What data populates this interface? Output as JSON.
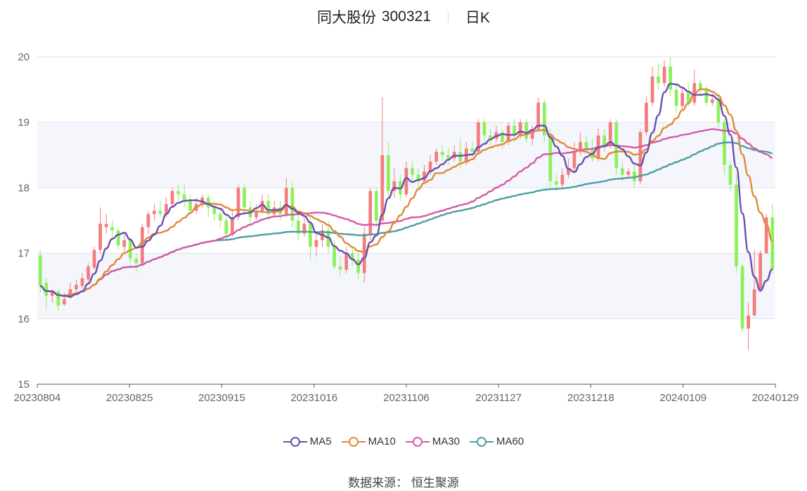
{
  "header": {
    "name": "同大股份",
    "code": "300321",
    "period": "日K"
  },
  "source": "数据来源： 恒生聚源",
  "colors": {
    "up": "#f47c7c",
    "down": "#8cf05c",
    "MA5": "#6a4fb0",
    "MA10": "#e08a3a",
    "MA30": "#d45aa8",
    "MA60": "#4c9ea0"
  },
  "chart_data": {
    "type": "candlestick",
    "title": "同大股份 300321 日K",
    "y_ticks": [
      "15",
      "16",
      "17",
      "18",
      "19",
      "20"
    ],
    "ylim": [
      15,
      20
    ],
    "x_ticks": [
      "20230804",
      "20230825",
      "20230915",
      "20231016",
      "20231106",
      "20231127",
      "20231218",
      "20240109",
      "20240129"
    ],
    "legend": [
      "MA5",
      "MA10",
      "MA30",
      "MA60"
    ],
    "candles": [
      [
        16.97,
        16.5,
        17.05,
        16.4
      ],
      [
        16.55,
        16.35,
        16.62,
        16.15
      ],
      [
        16.35,
        16.4,
        16.45,
        16.25
      ],
      [
        16.42,
        16.2,
        16.45,
        16.12
      ],
      [
        16.22,
        16.3,
        16.4,
        16.2
      ],
      [
        16.32,
        16.45,
        16.55,
        16.3
      ],
      [
        16.45,
        16.52,
        16.6,
        16.38
      ],
      [
        16.5,
        16.62,
        16.7,
        16.45
      ],
      [
        16.6,
        16.8,
        16.85,
        16.55
      ],
      [
        16.78,
        17.05,
        17.1,
        16.75
      ],
      [
        17.05,
        17.45,
        17.7,
        17.0
      ],
      [
        17.4,
        17.45,
        17.6,
        17.3
      ],
      [
        17.4,
        17.35,
        17.5,
        17.2
      ],
      [
        17.35,
        17.12,
        17.4,
        17.05
      ],
      [
        17.1,
        17.2,
        17.3,
        17.0
      ],
      [
        17.2,
        16.92,
        17.25,
        16.8
      ],
      [
        16.92,
        16.85,
        17.0,
        16.7
      ],
      [
        16.85,
        17.4,
        17.45,
        16.8
      ],
      [
        17.4,
        17.6,
        17.65,
        17.3
      ],
      [
        17.6,
        17.65,
        17.75,
        17.5
      ],
      [
        17.65,
        17.6,
        17.8,
        17.55
      ],
      [
        17.6,
        17.75,
        17.85,
        17.55
      ],
      [
        17.75,
        17.95,
        18.0,
        17.7
      ],
      [
        17.95,
        17.9,
        18.05,
        17.8
      ],
      [
        17.9,
        17.8,
        18.05,
        17.7
      ],
      [
        17.8,
        17.65,
        17.9,
        17.6
      ],
      [
        17.65,
        17.75,
        17.85,
        17.6
      ],
      [
        17.75,
        17.85,
        17.9,
        17.7
      ],
      [
        17.85,
        17.7,
        17.9,
        17.55
      ],
      [
        17.7,
        17.6,
        17.8,
        17.5
      ],
      [
        17.6,
        17.5,
        17.7,
        17.4
      ],
      [
        17.5,
        17.3,
        17.6,
        17.2
      ],
      [
        17.3,
        17.55,
        17.65,
        17.25
      ],
      [
        17.55,
        18.0,
        18.05,
        17.5
      ],
      [
        18.0,
        17.7,
        18.05,
        17.6
      ],
      [
        17.7,
        17.55,
        17.8,
        17.45
      ],
      [
        17.55,
        17.65,
        17.75,
        17.5
      ],
      [
        17.65,
        17.8,
        17.9,
        17.6
      ],
      [
        17.8,
        17.6,
        17.9,
        17.5
      ],
      [
        17.6,
        17.7,
        17.8,
        17.55
      ],
      [
        17.7,
        17.6,
        17.8,
        17.5
      ],
      [
        17.6,
        18.0,
        18.15,
        17.55
      ],
      [
        18.0,
        17.5,
        18.1,
        17.4
      ],
      [
        17.5,
        17.3,
        17.6,
        17.2
      ],
      [
        17.3,
        17.45,
        17.55,
        17.25
      ],
      [
        17.45,
        17.1,
        17.55,
        16.9
      ],
      [
        17.1,
        17.2,
        17.3,
        16.95
      ],
      [
        17.2,
        17.35,
        17.45,
        17.1
      ],
      [
        17.35,
        17.1,
        17.5,
        17.0
      ],
      [
        17.1,
        16.8,
        17.2,
        16.75
      ],
      [
        16.8,
        16.75,
        16.95,
        16.65
      ],
      [
        16.75,
        17.0,
        17.1,
        16.7
      ],
      [
        17.0,
        16.9,
        17.1,
        16.8
      ],
      [
        16.9,
        16.7,
        17.0,
        16.6
      ],
      [
        16.7,
        17.3,
        17.4,
        16.55
      ],
      [
        17.3,
        17.95,
        18.0,
        17.2
      ],
      [
        17.95,
        17.5,
        18.0,
        17.4
      ],
      [
        17.5,
        18.5,
        19.38,
        17.45
      ],
      [
        18.5,
        17.95,
        18.7,
        17.85
      ],
      [
        17.95,
        18.1,
        18.3,
        17.85
      ],
      [
        18.1,
        17.9,
        18.2,
        17.8
      ],
      [
        17.9,
        18.3,
        18.4,
        17.85
      ],
      [
        18.3,
        18.2,
        18.4,
        18.1
      ],
      [
        18.2,
        18.1,
        18.3,
        18.0
      ],
      [
        18.1,
        18.25,
        18.35,
        18.05
      ],
      [
        18.25,
        18.4,
        18.5,
        18.2
      ],
      [
        18.4,
        18.55,
        18.6,
        18.35
      ],
      [
        18.55,
        18.5,
        18.65,
        18.4
      ],
      [
        18.5,
        18.45,
        18.6,
        18.35
      ],
      [
        18.45,
        18.55,
        18.65,
        18.4
      ],
      [
        18.55,
        18.4,
        18.75,
        18.3
      ],
      [
        18.4,
        18.6,
        18.7,
        18.35
      ],
      [
        18.6,
        18.55,
        18.7,
        18.45
      ],
      [
        18.55,
        19.0,
        19.05,
        18.5
      ],
      [
        19.0,
        18.8,
        19.05,
        18.7
      ],
      [
        18.8,
        18.75,
        18.9,
        18.65
      ],
      [
        18.75,
        18.85,
        18.95,
        18.7
      ],
      [
        18.85,
        18.7,
        18.9,
        18.6
      ],
      [
        18.7,
        18.95,
        19.0,
        18.65
      ],
      [
        18.95,
        18.8,
        19.05,
        18.7
      ],
      [
        18.8,
        19.0,
        19.05,
        18.75
      ],
      [
        19.0,
        18.75,
        19.05,
        18.7
      ],
      [
        18.75,
        18.9,
        18.95,
        18.65
      ],
      [
        18.9,
        19.3,
        19.38,
        18.85
      ],
      [
        19.3,
        18.8,
        19.35,
        18.7
      ],
      [
        18.8,
        18.1,
        18.9,
        18.0
      ],
      [
        18.1,
        18.05,
        18.2,
        17.95
      ],
      [
        18.05,
        18.2,
        18.3,
        18.0
      ],
      [
        18.2,
        18.3,
        18.45,
        18.15
      ],
      [
        18.3,
        18.55,
        18.7,
        18.25
      ],
      [
        18.55,
        18.7,
        18.85,
        18.5
      ],
      [
        18.7,
        18.6,
        18.8,
        18.55
      ],
      [
        18.6,
        18.45,
        18.75,
        18.4
      ],
      [
        18.45,
        18.8,
        18.9,
        18.4
      ],
      [
        18.8,
        18.65,
        18.9,
        18.55
      ],
      [
        18.65,
        19.0,
        19.05,
        18.6
      ],
      [
        19.0,
        18.3,
        19.05,
        18.2
      ],
      [
        18.3,
        18.2,
        18.4,
        18.1
      ],
      [
        18.2,
        18.25,
        18.3,
        18.15
      ],
      [
        18.25,
        18.1,
        18.35,
        18.0
      ],
      [
        18.1,
        18.85,
        18.9,
        18.05
      ],
      [
        18.85,
        19.3,
        19.4,
        18.8
      ],
      [
        19.3,
        19.7,
        19.85,
        19.25
      ],
      [
        19.7,
        19.6,
        19.9,
        19.5
      ],
      [
        19.6,
        19.85,
        19.95,
        19.55
      ],
      [
        19.85,
        19.5,
        20.0,
        19.4
      ],
      [
        19.5,
        19.25,
        19.6,
        19.15
      ],
      [
        19.25,
        19.45,
        19.55,
        19.2
      ],
      [
        19.45,
        19.3,
        19.6,
        19.25
      ],
      [
        19.3,
        19.6,
        19.8,
        19.25
      ],
      [
        19.6,
        19.5,
        19.65,
        19.4
      ],
      [
        19.5,
        19.3,
        19.55,
        19.25
      ],
      [
        19.3,
        19.35,
        19.45,
        19.25
      ],
      [
        19.35,
        19.0,
        19.45,
        18.9
      ],
      [
        19.0,
        18.35,
        19.05,
        18.2
      ],
      [
        18.35,
        18.05,
        18.4,
        17.95
      ],
      [
        18.05,
        16.8,
        18.2,
        16.7
      ],
      [
        16.8,
        15.85,
        16.85,
        15.8
      ],
      [
        15.85,
        16.05,
        16.25,
        15.52
      ],
      [
        16.05,
        16.45,
        17.05,
        16.05
      ],
      [
        16.45,
        17.0,
        17.05,
        16.4
      ],
      [
        17.0,
        17.55,
        17.6,
        17.0
      ],
      [
        17.55,
        16.75,
        17.75,
        16.7
      ]
    ]
  }
}
